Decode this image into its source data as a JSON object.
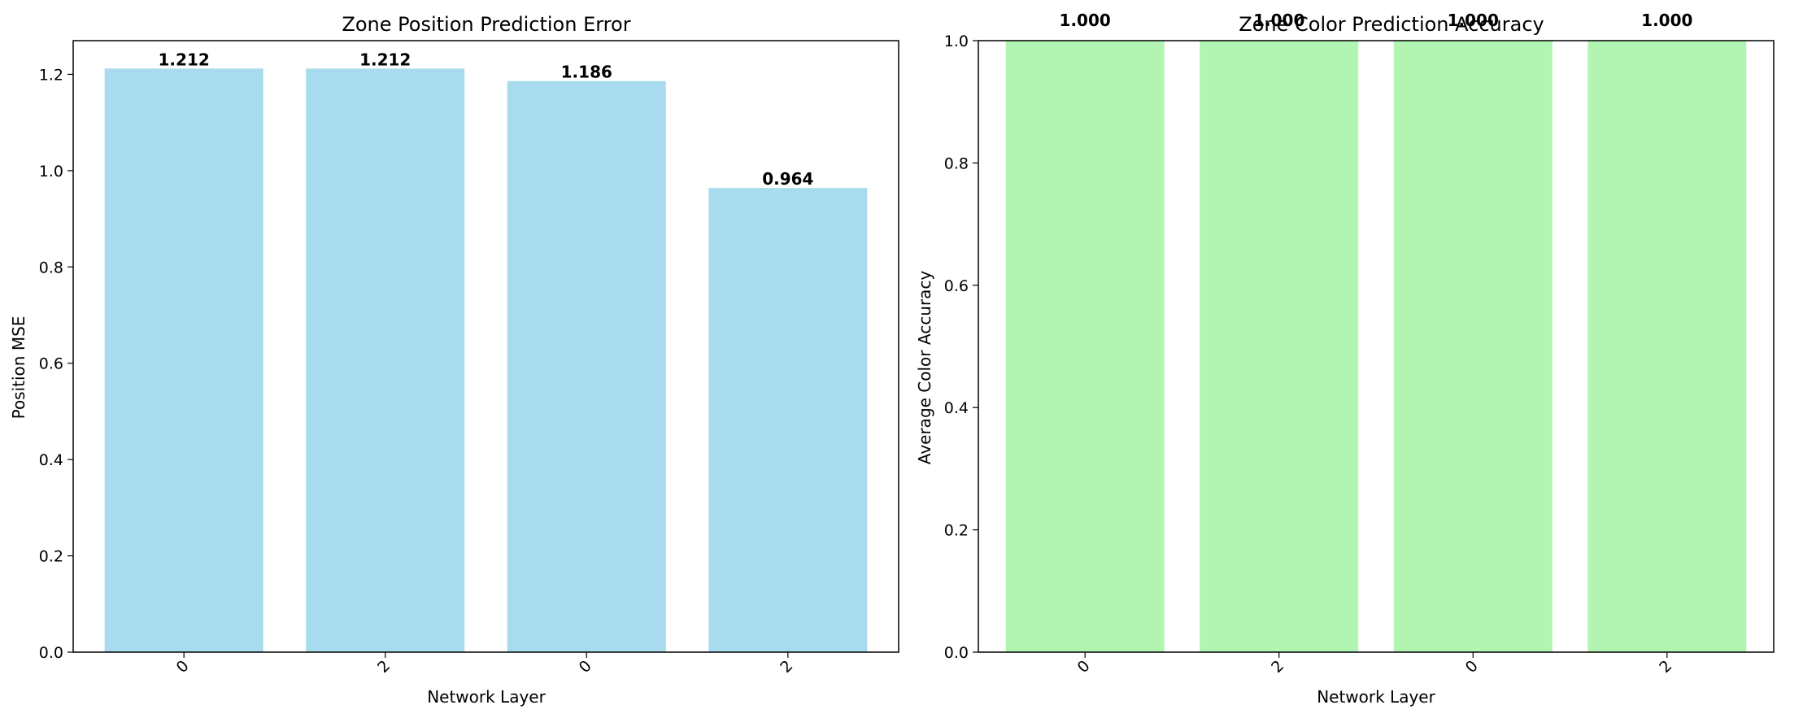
{
  "chart_data": [
    {
      "type": "bar",
      "title": "Zone Position Prediction Error",
      "xlabel": "Network Layer",
      "ylabel": "Position MSE",
      "categories": [
        "0",
        "2",
        "0",
        "2"
      ],
      "values": [
        1.212,
        1.212,
        1.186,
        0.964
      ],
      "value_labels": [
        "1.212",
        "1.212",
        "1.186",
        "0.964"
      ],
      "ylim": [
        0,
        1.27
      ],
      "yticks": [
        "0.0",
        "0.2",
        "0.4",
        "0.6",
        "0.8",
        "1.0",
        "1.2"
      ],
      "bar_color": "#a8dbed",
      "grid": false
    },
    {
      "type": "bar",
      "title": "Zone Color Prediction Accuracy",
      "xlabel": "Network Layer",
      "ylabel": "Average Color Accuracy",
      "categories": [
        "0",
        "2",
        "0",
        "2"
      ],
      "values": [
        1.0,
        1.0,
        1.0,
        1.0
      ],
      "value_labels": [
        "1.000",
        "1.000",
        "1.000",
        "1.000"
      ],
      "ylim": [
        0,
        1.0
      ],
      "yticks": [
        "0.0",
        "0.2",
        "0.4",
        "0.6",
        "0.8",
        "1.0"
      ],
      "bar_color": "#b2f5b2",
      "grid": false
    }
  ]
}
